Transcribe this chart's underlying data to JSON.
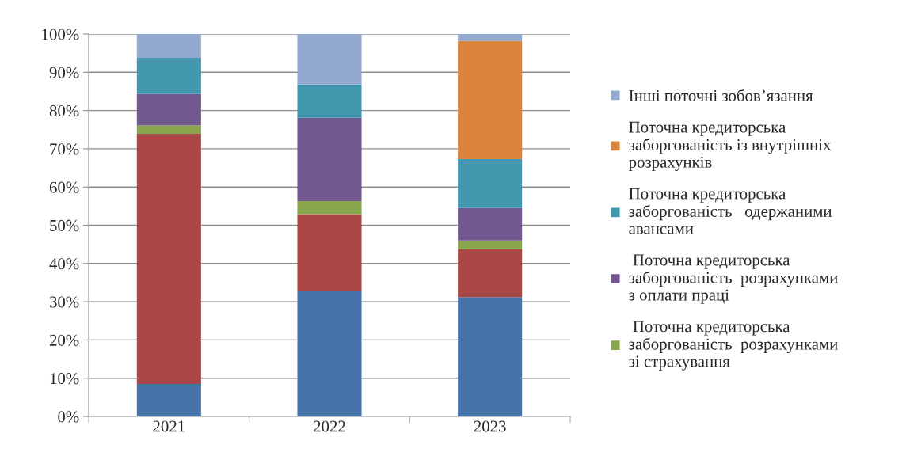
{
  "chart_data": {
    "type": "bar",
    "stacked": true,
    "categories": [
      "2021",
      "2022",
      "2023"
    ],
    "series": [
      {
        "color": "#4572a7",
        "values": [
          8.5,
          32.7,
          31.2
        ]
      },
      {
        "color": "#aa4643",
        "values": [
          65.4,
          20.2,
          12.5
        ]
      },
      {
        "name": " Поточна кредиторська\nзаборгованість  розрахунками\nзі страхування",
        "color": "#89a54e",
        "values": [
          2.2,
          3.4,
          2.3
        ]
      },
      {
        "name": " Поточна кредиторська\nзаборгованість  розрахунками\nз оплати праці",
        "color": "#71588f",
        "values": [
          8.2,
          21.8,
          8.5
        ]
      },
      {
        "name": "Поточна кредиторська\nзаборгованість   одержаними\nавансами",
        "color": "#4198af",
        "values": [
          9.5,
          8.7,
          12.8
        ]
      },
      {
        "name": "Поточна кредиторська\nзаборгованість із внутрішніх\nрозрахунків",
        "color": "#db843d",
        "values": [
          0,
          0,
          30.9
        ]
      },
      {
        "name": "Інші поточні зобов’язання",
        "color": "#93a9cf",
        "values": [
          6.2,
          13.2,
          1.8
        ]
      }
    ],
    "ylim": [
      0,
      100
    ],
    "yticks": [
      {
        "value": 0,
        "label": "0%"
      },
      {
        "value": 10,
        "label": "10%"
      },
      {
        "value": 20,
        "label": "20%"
      },
      {
        "value": 30,
        "label": "30%"
      },
      {
        "value": 40,
        "label": "40%"
      },
      {
        "value": 50,
        "label": "50%"
      },
      {
        "value": 60,
        "label": "60%"
      },
      {
        "value": 70,
        "label": "70%"
      },
      {
        "value": 80,
        "label": "80%"
      },
      {
        "value": 90,
        "label": "90%"
      },
      {
        "value": 100,
        "label": "100%"
      }
    ],
    "grid": "y",
    "legend": "right"
  }
}
